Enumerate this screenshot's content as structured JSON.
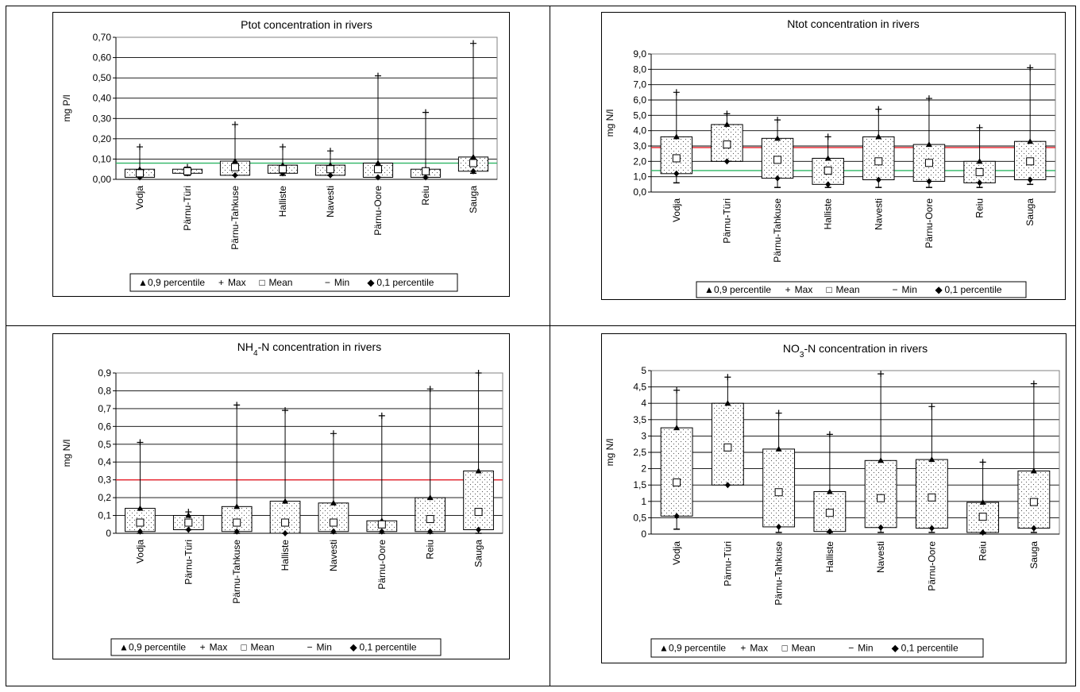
{
  "legend_items": [
    {
      "symbol": "▲",
      "label": "0,9 percentile"
    },
    {
      "symbol": "+",
      "label": "Max"
    },
    {
      "symbol": "□",
      "label": "Mean"
    },
    {
      "symbol": "−",
      "label": "Min"
    },
    {
      "symbol": "◆",
      "label": "0,1 percentile"
    }
  ],
  "colors": {
    "reference_red": "#e8202a",
    "reference_green": "#2db564",
    "frame": "#000000"
  },
  "chart_data": [
    {
      "type": "box",
      "title": "Ptot  concentration in rivers",
      "title_main": "Ptot  concentration in rivers",
      "title_sub": "",
      "title_rest": "",
      "ylabel": "mg P/l",
      "xlabel": "",
      "ylim": [
        0,
        0.7
      ],
      "yticks": [
        "0,00",
        "0,10",
        "0,20",
        "0,30",
        "0,40",
        "0,50",
        "0,60",
        "0,70"
      ],
      "grid": true,
      "legend": "bottom",
      "categories": [
        "Vodja",
        "Pärnu-Türi",
        "Pärnu-Tahkuse",
        "Halliste",
        "Navesti",
        "Pärnu-Oore",
        "Reiu",
        "Sauga"
      ],
      "p90": [
        0.05,
        0.05,
        0.09,
        0.07,
        0.07,
        0.08,
        0.05,
        0.11
      ],
      "max": [
        0.16,
        0.06,
        0.27,
        0.16,
        0.14,
        0.51,
        0.33,
        0.67
      ],
      "mean": [
        0.03,
        0.04,
        0.06,
        0.05,
        0.05,
        0.05,
        0.04,
        0.08
      ],
      "min": [
        0.01,
        0.02,
        0.02,
        0.02,
        0.02,
        0.01,
        0.01,
        0.03
      ],
      "p10": [
        0.01,
        0.03,
        0.02,
        0.03,
        0.02,
        0.01,
        0.01,
        0.04
      ],
      "ref_lines": [
        {
          "value": 0.08,
          "color": "green"
        }
      ]
    },
    {
      "type": "box",
      "title": "Ntot  concentration in rivers",
      "title_main": "Ntot  concentration in rivers",
      "title_sub": "",
      "title_rest": "",
      "ylabel": "mg N/l",
      "xlabel": "",
      "ylim": [
        0,
        9.0
      ],
      "yticks": [
        "0,0",
        "1,0",
        "2,0",
        "3,0",
        "4,0",
        "5,0",
        "6,0",
        "7,0",
        "8,0",
        "9,0"
      ],
      "grid": true,
      "legend": "bottom",
      "categories": [
        "Vodja",
        "Pärnu-Türi",
        "Pärnu-Tahkuse",
        "Halliste",
        "Navesti",
        "Pärnu-Oore",
        "Reiu",
        "Sauga"
      ],
      "p90": [
        3.6,
        4.4,
        3.5,
        2.2,
        3.6,
        3.1,
        2.0,
        3.3
      ],
      "max": [
        6.5,
        5.1,
        4.7,
        3.6,
        5.4,
        6.1,
        4.2,
        8.1
      ],
      "mean": [
        2.2,
        3.1,
        2.1,
        1.4,
        2.0,
        1.9,
        1.3,
        2.0
      ],
      "min": [
        0.6,
        2.0,
        0.3,
        0.3,
        0.3,
        0.3,
        0.3,
        0.5
      ],
      "p10": [
        1.2,
        2.0,
        0.9,
        0.5,
        0.8,
        0.7,
        0.6,
        0.8
      ],
      "ref_lines": [
        {
          "value": 2.9,
          "color": "red"
        },
        {
          "value": 1.4,
          "color": "green"
        }
      ]
    },
    {
      "type": "box",
      "title": "NH4-N  concentration in rivers",
      "title_main": "NH",
      "title_sub": "4",
      "title_rest": "-N  concentration in rivers",
      "ylabel": "mg N/l",
      "xlabel": "",
      "ylim": [
        0,
        0.9
      ],
      "yticks": [
        "0",
        "0,1",
        "0,2",
        "0,3",
        "0,4",
        "0,5",
        "0,6",
        "0,7",
        "0,8",
        "0,9"
      ],
      "grid": true,
      "legend": "bottom",
      "categories": [
        "Vodja",
        "Pärnu-Türi",
        "Pärnu-Tahkuse",
        "Halliste",
        "Navesti",
        "Pärnu-Oore",
        "Reiu",
        "Sauga"
      ],
      "p90": [
        0.14,
        0.1,
        0.15,
        0.18,
        0.17,
        0.07,
        0.2,
        0.35
      ],
      "max": [
        0.51,
        0.12,
        0.72,
        0.69,
        0.56,
        0.66,
        0.81,
        0.9
      ],
      "mean": [
        0.06,
        0.06,
        0.06,
        0.06,
        0.06,
        0.05,
        0.08,
        0.12
      ],
      "min": [
        0.0,
        0.02,
        0.0,
        0.0,
        0.0,
        0.0,
        0.0,
        0.0
      ],
      "p10": [
        0.01,
        0.02,
        0.01,
        0.0,
        0.01,
        0.01,
        0.01,
        0.02
      ],
      "ref_lines": [
        {
          "value": 0.3,
          "color": "red"
        }
      ]
    },
    {
      "type": "box",
      "title": "NO3-N  concentration in rivers",
      "title_main": "NO",
      "title_sub": "3",
      "title_rest": "-N  concentration in rivers",
      "ylabel": "mg N/l",
      "xlabel": "",
      "ylim": [
        0,
        5
      ],
      "yticks": [
        "0",
        "0,5",
        "1",
        "1,5",
        "2",
        "2,5",
        "3",
        "3,5",
        "4",
        "4,5",
        "5"
      ],
      "grid": true,
      "legend": "bottom",
      "categories": [
        "Vodja",
        "Pärnu-Türi",
        "Pärnu-Tahkuse",
        "Halliste",
        "Navesti",
        "Pärnu-Oore",
        "Reiu",
        "Sauga"
      ],
      "p90": [
        3.25,
        4.0,
        2.6,
        1.3,
        2.25,
        2.28,
        0.97,
        1.93
      ],
      "max": [
        4.4,
        4.8,
        3.7,
        3.05,
        4.9,
        3.9,
        2.2,
        4.6
      ],
      "mean": [
        1.58,
        2.65,
        1.28,
        0.65,
        1.1,
        1.12,
        0.53,
        0.98
      ],
      "min": [
        0.15,
        1.5,
        0.05,
        0.05,
        0.05,
        0.05,
        0.03,
        0.05
      ],
      "p10": [
        0.55,
        1.5,
        0.22,
        0.08,
        0.2,
        0.18,
        0.05,
        0.18
      ],
      "ref_lines": []
    }
  ]
}
